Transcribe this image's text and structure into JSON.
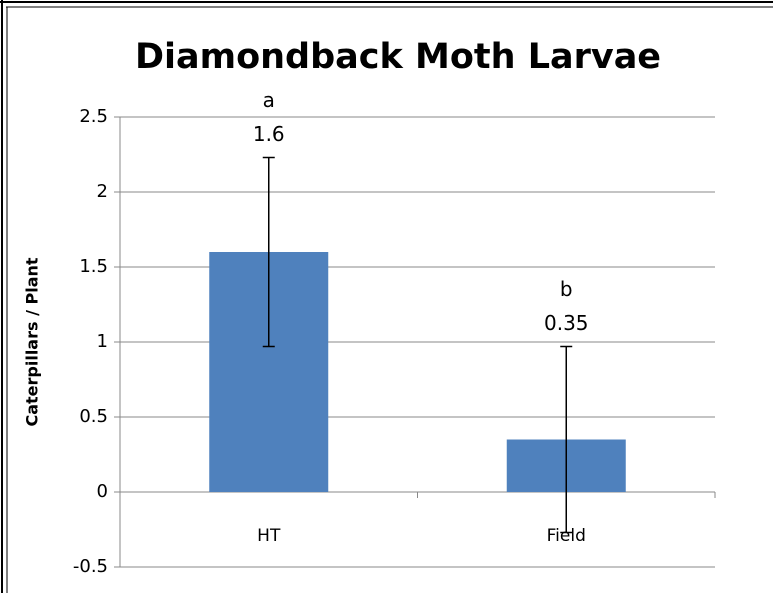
{
  "chart_data": {
    "type": "bar",
    "title": "Diamondback Moth Larvae",
    "y_label": "Caterpillars / Plant",
    "categories": [
      "HT",
      "Field"
    ],
    "values": [
      1.6,
      0.35
    ],
    "errors": [
      0.63,
      0.62
    ],
    "significance_letters": [
      "a",
      "b"
    ],
    "color": "#4f81bd",
    "ylim": [
      -0.5,
      2.5
    ],
    "yticks": [
      -0.5,
      0,
      0.5,
      1,
      1.5,
      2,
      2.5
    ],
    "grid": true
  }
}
